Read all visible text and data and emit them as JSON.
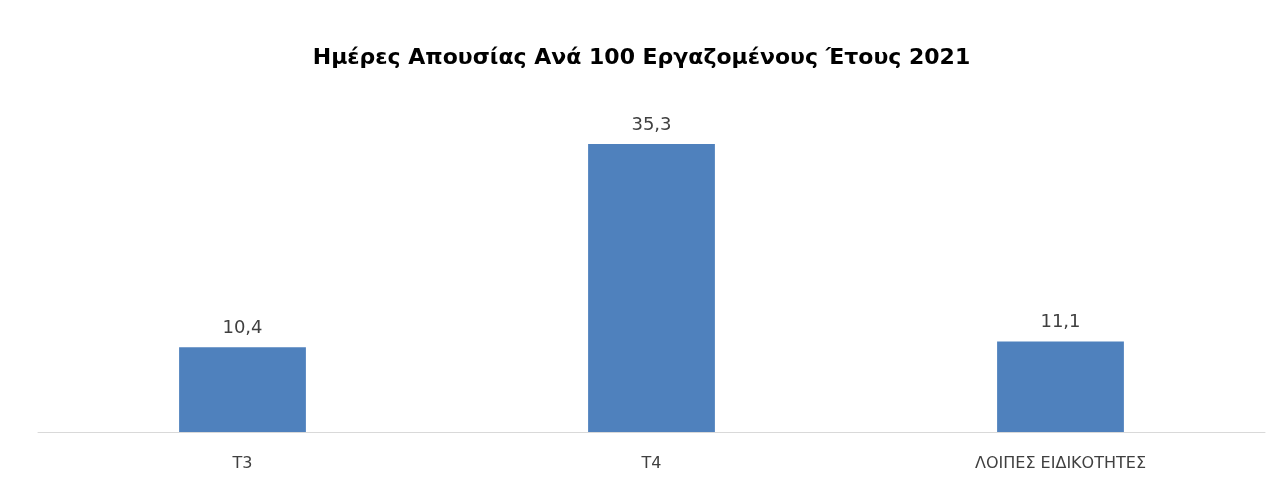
{
  "chart_data": {
    "type": "bar",
    "title": "Ημέρες Απουσίας Ανά 100 Εργαζομένους Έτους 2021",
    "categories": [
      "T3",
      "T4",
      "ΛΟΙΠΕΣ ΕΙΔΙΚΟΤΗΤΕΣ"
    ],
    "values": [
      10.4,
      35.3,
      11.1
    ],
    "color": "#4f81bd",
    "value_labels": [
      "10,4",
      "35,3",
      "11,1"
    ]
  }
}
